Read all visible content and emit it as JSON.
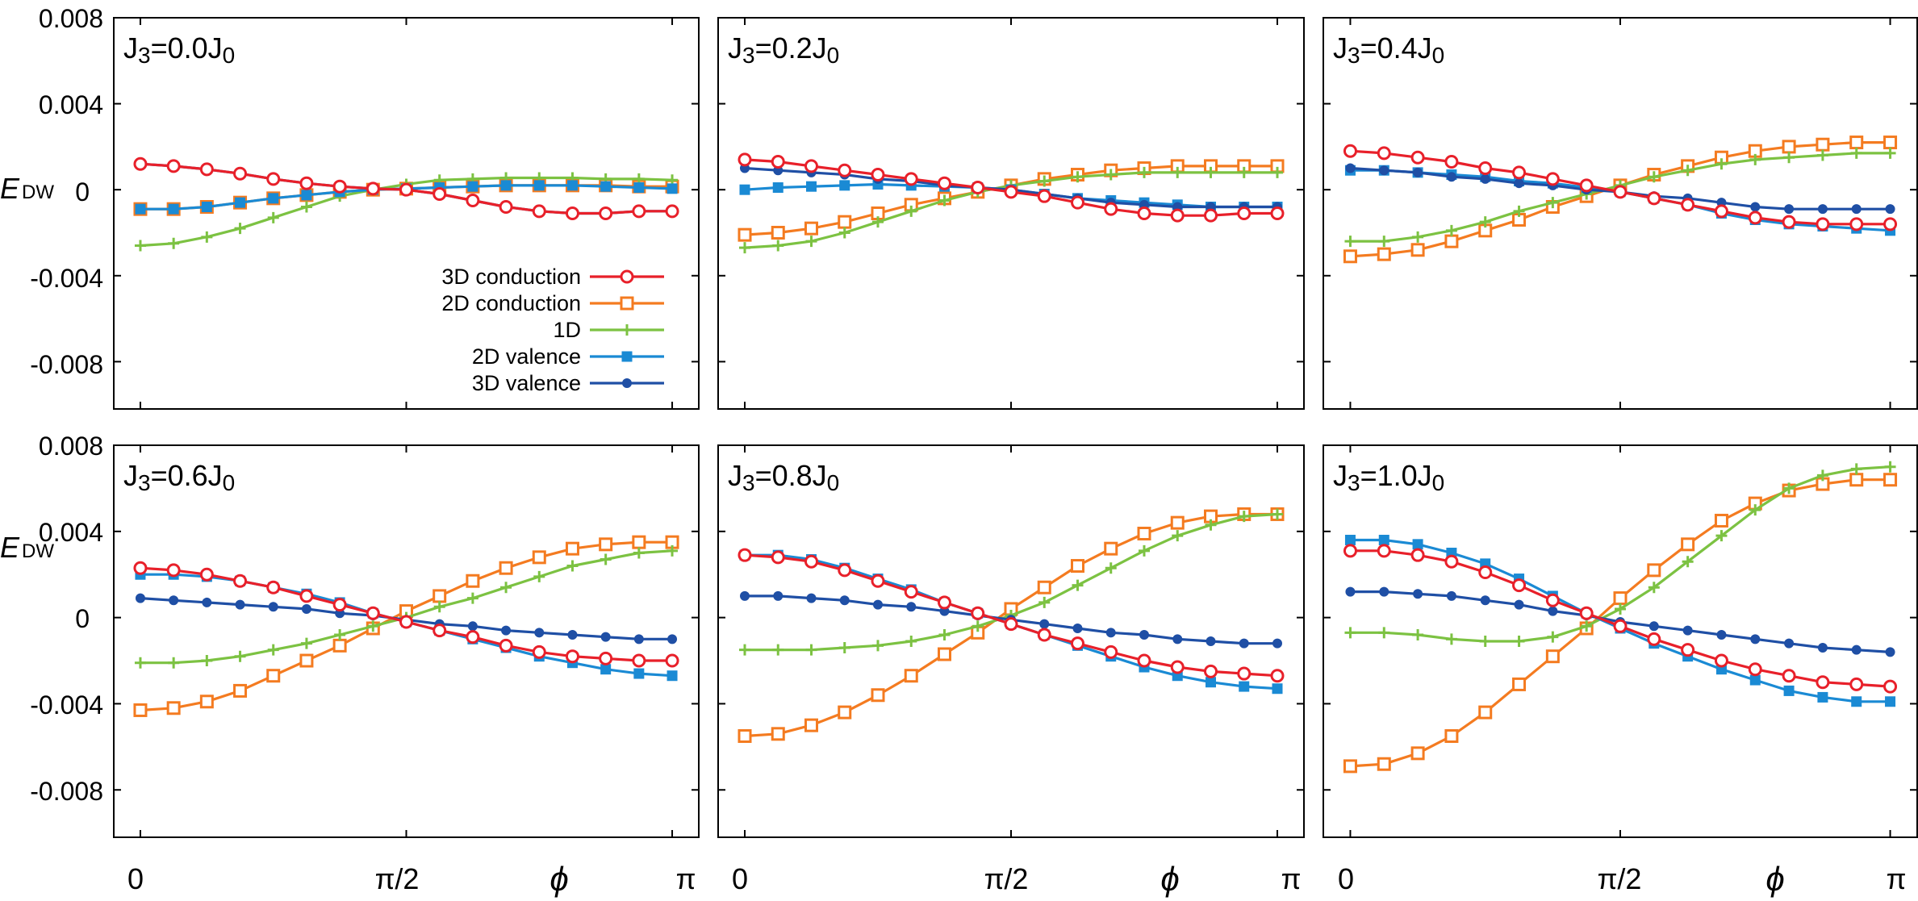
{
  "colors": {
    "cond3d": "#e8202a",
    "cond2d": "#f47b20",
    "d1": "#7cc242",
    "val2d": "#1a8ad4",
    "val3d": "#1f4fa5"
  },
  "chart_data": {
    "type": "line",
    "ylabel_main": "E",
    "ylabel_sub": "DW",
    "xlabel": "ϕ",
    "x_ticks": [
      "0",
      "π/2",
      "π"
    ],
    "y_ticks": [
      "0.008",
      "0.004",
      "0",
      "-0.004",
      "-0.008"
    ],
    "ylim": [
      -0.0102,
      0.008
    ],
    "xlim": [
      -0.05,
      1.05
    ],
    "x_unit": "π",
    "x": [
      0.0,
      0.0625,
      0.125,
      0.1875,
      0.25,
      0.3125,
      0.375,
      0.4375,
      0.5,
      0.5625,
      0.625,
      0.6875,
      0.75,
      0.8125,
      0.875,
      0.9375,
      1.0
    ],
    "legend": [
      {
        "key": "cond3d",
        "label": "3D conduction",
        "marker": "circle"
      },
      {
        "key": "cond2d",
        "label": "2D conduction",
        "marker": "square"
      },
      {
        "key": "d1",
        "label": "1D",
        "marker": "plus"
      },
      {
        "key": "val2d",
        "label": "2D valence",
        "marker": "filled-square"
      },
      {
        "key": "val3d",
        "label": "3D valence",
        "marker": "filled-circle"
      }
    ],
    "panels": [
      {
        "label_main": "J",
        "label_sub1": "3",
        "label_mid": "=0.0J",
        "label_sub2": "0",
        "series": {
          "cond3d": [
            0.0012,
            0.0011,
            0.00095,
            0.00075,
            0.0005,
            0.0003,
            0.00015,
            5e-05,
            0.0,
            -0.0002,
            -0.0005,
            -0.0008,
            -0.001,
            -0.0011,
            -0.0011,
            -0.001,
            -0.001
          ],
          "cond2d": [
            -0.0009,
            -0.0009,
            -0.0008,
            -0.0006,
            -0.0004,
            -0.00025,
            -0.0001,
            0.0,
            5e-05,
            0.0001,
            0.00015,
            0.0002,
            0.0002,
            0.0002,
            0.0002,
            0.00015,
            0.00015
          ],
          "d1": [
            -0.0026,
            -0.0025,
            -0.0022,
            -0.0018,
            -0.0013,
            -0.0008,
            -0.0003,
            0.0,
            0.00025,
            0.00045,
            0.0005,
            0.00055,
            0.00055,
            0.00055,
            0.0005,
            0.0005,
            0.00045
          ],
          "val2d": [
            -0.0009,
            -0.0009,
            -0.0008,
            -0.0006,
            -0.0004,
            -0.00025,
            -0.0001,
            0.0,
            5e-05,
            0.0001,
            0.00015,
            0.0002,
            0.0002,
            0.0002,
            0.00015,
            0.0001,
            5e-05
          ],
          "val3d": [
            0.0012,
            0.0011,
            0.00095,
            0.00075,
            0.0005,
            0.0003,
            0.00015,
            5e-05,
            0.0,
            -0.0002,
            -0.0005,
            -0.0008,
            -0.001,
            -0.0011,
            -0.0011,
            -0.001,
            -0.001
          ]
        }
      },
      {
        "label_main": "J",
        "label_sub1": "3",
        "label_mid": "=0.2J",
        "label_sub2": "0",
        "series": {
          "cond3d": [
            0.0014,
            0.0013,
            0.0011,
            0.0009,
            0.0007,
            0.0005,
            0.0003,
            0.0001,
            -0.0001,
            -0.0003,
            -0.0006,
            -0.0009,
            -0.0011,
            -0.0012,
            -0.0012,
            -0.0011,
            -0.0011
          ],
          "cond2d": [
            -0.0021,
            -0.002,
            -0.0018,
            -0.0015,
            -0.0011,
            -0.0007,
            -0.0004,
            -0.0001,
            0.0002,
            0.0005,
            0.0007,
            0.0009,
            0.001,
            0.0011,
            0.0011,
            0.0011,
            0.0011
          ],
          "d1": [
            -0.0027,
            -0.0026,
            -0.0024,
            -0.002,
            -0.0015,
            -0.001,
            -0.0005,
            -0.0001,
            0.0002,
            0.0004,
            0.0006,
            0.0007,
            0.0008,
            0.0008,
            0.0008,
            0.0008,
            0.0008
          ],
          "val2d": [
            0.0,
            0.0001,
            0.00015,
            0.0002,
            0.00025,
            0.0002,
            0.00015,
            0.0001,
            0.0,
            -0.0002,
            -0.0004,
            -0.0005,
            -0.0006,
            -0.0007,
            -0.0008,
            -0.0008,
            -0.0008
          ],
          "val3d": [
            0.001,
            0.0009,
            0.0008,
            0.0007,
            0.0005,
            0.0004,
            0.0002,
            0.0001,
            0.0,
            -0.0002,
            -0.0004,
            -0.0006,
            -0.0007,
            -0.0008,
            -0.0008,
            -0.0008,
            -0.0008
          ]
        }
      },
      {
        "label_main": "J",
        "label_sub1": "3",
        "label_mid": "=0.4J",
        "label_sub2": "0",
        "series": {
          "cond3d": [
            0.0018,
            0.0017,
            0.0015,
            0.0013,
            0.001,
            0.0008,
            0.0005,
            0.0002,
            -0.0001,
            -0.0004,
            -0.0007,
            -0.001,
            -0.0013,
            -0.0015,
            -0.0016,
            -0.0016,
            -0.0016
          ],
          "cond2d": [
            -0.0031,
            -0.003,
            -0.0028,
            -0.0024,
            -0.0019,
            -0.0014,
            -0.0008,
            -0.0003,
            0.0002,
            0.0007,
            0.0011,
            0.0015,
            0.0018,
            0.002,
            0.0021,
            0.0022,
            0.0022
          ],
          "d1": [
            -0.0024,
            -0.0024,
            -0.0022,
            -0.0019,
            -0.0015,
            -0.001,
            -0.0006,
            -0.0002,
            0.0002,
            0.0006,
            0.0009,
            0.0012,
            0.0014,
            0.0015,
            0.0016,
            0.0017,
            0.0017
          ],
          "val2d": [
            0.0009,
            0.0009,
            0.0008,
            0.0007,
            0.0006,
            0.0004,
            0.0003,
            0.0001,
            -0.0001,
            -0.0004,
            -0.0007,
            -0.0011,
            -0.0014,
            -0.0016,
            -0.0017,
            -0.0018,
            -0.0019
          ],
          "val3d": [
            0.001,
            0.0009,
            0.0008,
            0.0006,
            0.0005,
            0.0003,
            0.0002,
            0.0,
            -0.0001,
            -0.0003,
            -0.0004,
            -0.0006,
            -0.0008,
            -0.0009,
            -0.0009,
            -0.0009,
            -0.0009
          ]
        }
      },
      {
        "label_main": "J",
        "label_sub1": "3",
        "label_mid": "=0.6J",
        "label_sub2": "0",
        "series": {
          "cond3d": [
            0.0023,
            0.0022,
            0.002,
            0.0017,
            0.0014,
            0.001,
            0.0006,
            0.0002,
            -0.0002,
            -0.0006,
            -0.0009,
            -0.0013,
            -0.0016,
            -0.0018,
            -0.0019,
            -0.002,
            -0.002
          ],
          "cond2d": [
            -0.0043,
            -0.0042,
            -0.0039,
            -0.0034,
            -0.0027,
            -0.002,
            -0.0013,
            -0.0005,
            0.0003,
            0.001,
            0.0017,
            0.0023,
            0.0028,
            0.0032,
            0.0034,
            0.0035,
            0.0035
          ],
          "d1": [
            -0.0021,
            -0.0021,
            -0.002,
            -0.0018,
            -0.0015,
            -0.0012,
            -0.0008,
            -0.0004,
            0.0,
            0.0005,
            0.0009,
            0.0014,
            0.0019,
            0.0024,
            0.0027,
            0.003,
            0.0031
          ],
          "val2d": [
            0.002,
            0.002,
            0.0019,
            0.0017,
            0.0014,
            0.0011,
            0.0007,
            0.0002,
            -0.0002,
            -0.0006,
            -0.001,
            -0.0014,
            -0.0018,
            -0.0021,
            -0.0024,
            -0.0026,
            -0.0027
          ],
          "val3d": [
            0.0009,
            0.0008,
            0.0007,
            0.0006,
            0.0005,
            0.0004,
            0.0002,
            0.0001,
            -0.0001,
            -0.0003,
            -0.0004,
            -0.0006,
            -0.0007,
            -0.0008,
            -0.0009,
            -0.001,
            -0.001
          ]
        }
      },
      {
        "label_main": "J",
        "label_sub1": "3",
        "label_mid": "=0.8J",
        "label_sub2": "0",
        "series": {
          "cond3d": [
            0.0029,
            0.0028,
            0.0026,
            0.0022,
            0.0017,
            0.0012,
            0.0007,
            0.0002,
            -0.0003,
            -0.0008,
            -0.0012,
            -0.0016,
            -0.002,
            -0.0023,
            -0.0025,
            -0.0026,
            -0.0027
          ],
          "cond2d": [
            -0.0055,
            -0.0054,
            -0.005,
            -0.0044,
            -0.0036,
            -0.0027,
            -0.0017,
            -0.0007,
            0.0004,
            0.0014,
            0.0024,
            0.0032,
            0.0039,
            0.0044,
            0.0047,
            0.0048,
            0.0048
          ],
          "d1": [
            -0.0015,
            -0.0015,
            -0.0015,
            -0.0014,
            -0.0013,
            -0.0011,
            -0.0008,
            -0.0004,
            0.0001,
            0.0007,
            0.0015,
            0.0023,
            0.0031,
            0.0038,
            0.0043,
            0.0047,
            0.0048
          ],
          "val2d": [
            0.0029,
            0.0029,
            0.0027,
            0.0023,
            0.0018,
            0.0013,
            0.0007,
            0.0002,
            -0.0003,
            -0.0008,
            -0.0013,
            -0.0018,
            -0.0023,
            -0.0027,
            -0.003,
            -0.0032,
            -0.0033
          ],
          "val3d": [
            0.001,
            0.001,
            0.0009,
            0.0008,
            0.0006,
            0.0005,
            0.0003,
            0.0001,
            -0.0001,
            -0.0003,
            -0.0005,
            -0.0007,
            -0.0008,
            -0.001,
            -0.0011,
            -0.0012,
            -0.0012
          ]
        }
      },
      {
        "label_main": "J",
        "label_sub1": "3",
        "label_mid": "=1.0J",
        "label_sub2": "0",
        "series": {
          "cond3d": [
            0.0031,
            0.0031,
            0.0029,
            0.0026,
            0.0021,
            0.0015,
            0.0008,
            0.0002,
            -0.0004,
            -0.001,
            -0.0015,
            -0.002,
            -0.0024,
            -0.0027,
            -0.003,
            -0.0031,
            -0.0032
          ],
          "cond2d": [
            -0.0069,
            -0.0068,
            -0.0063,
            -0.0055,
            -0.0044,
            -0.0031,
            -0.0018,
            -0.0005,
            0.0009,
            0.0022,
            0.0034,
            0.0045,
            0.0053,
            0.0059,
            0.0062,
            0.0064,
            0.0064
          ],
          "d1": [
            -0.0007,
            -0.0007,
            -0.0008,
            -0.001,
            -0.0011,
            -0.0011,
            -0.0009,
            -0.0004,
            0.0004,
            0.0014,
            0.0026,
            0.0038,
            0.005,
            0.006,
            0.0066,
            0.0069,
            0.007
          ],
          "val2d": [
            0.0036,
            0.0036,
            0.0034,
            0.003,
            0.0025,
            0.0018,
            0.001,
            0.0002,
            -0.0005,
            -0.0012,
            -0.0018,
            -0.0024,
            -0.0029,
            -0.0034,
            -0.0037,
            -0.0039,
            -0.0039
          ],
          "val3d": [
            0.0012,
            0.0012,
            0.0011,
            0.001,
            0.0008,
            0.0006,
            0.0003,
            0.0001,
            -0.0002,
            -0.0004,
            -0.0006,
            -0.0008,
            -0.001,
            -0.0012,
            -0.0014,
            -0.0015,
            -0.0016
          ]
        }
      }
    ]
  }
}
